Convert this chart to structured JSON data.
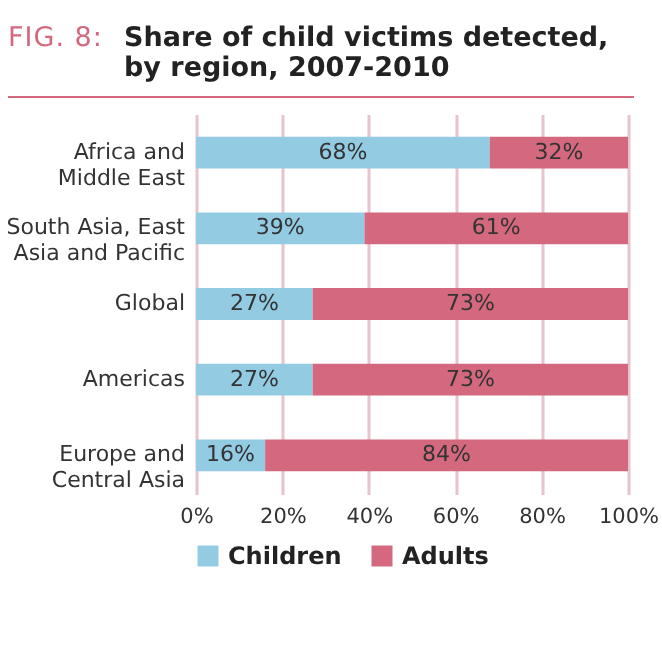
{
  "chart_data": {
    "type": "bar",
    "orientation": "horizontal",
    "stacked": true,
    "title": "Share of child victims detected, by region, 2007-2010",
    "annotations": [
      "FIG. 8:"
    ],
    "categories": [
      "Africa and Middle East",
      "South Asia, East Asia and Pacific",
      "Global",
      "Americas",
      "Europe and Central Asia"
    ],
    "series": [
      {
        "name": "Children",
        "color": "#93cbe3",
        "values": [
          68,
          39,
          27,
          27,
          16
        ],
        "value_labels": [
          "68%",
          "39%",
          "27%",
          "27%",
          "16%"
        ]
      },
      {
        "name": "Adults",
        "color": "#d4687e",
        "values": [
          32,
          61,
          73,
          73,
          84
        ],
        "value_labels": [
          "32%",
          "61%",
          "73%",
          "73%",
          "84%"
        ]
      }
    ],
    "xlim": [
      0,
      100
    ],
    "xticks": [
      {
        "value": 0,
        "label": "0%"
      },
      {
        "value": 20,
        "label": "20%"
      },
      {
        "value": 40,
        "label": "40%"
      },
      {
        "value": 60,
        "label": "60%"
      },
      {
        "value": 80,
        "label": "80%"
      },
      {
        "value": 100,
        "label": "100%"
      }
    ],
    "grid": "x",
    "legend": "bottom"
  }
}
